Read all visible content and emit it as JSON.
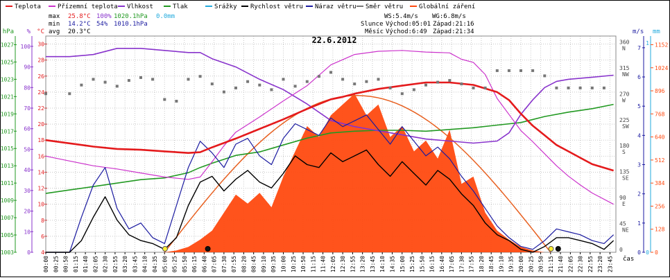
{
  "legend": [
    {
      "label": "Teplota",
      "color": "#e41a1c"
    },
    {
      "label": "Přízemní teplota",
      "color": "#cc33cc"
    },
    {
      "label": "Vlhkost",
      "color": "#8833cc"
    },
    {
      "label": "Tlak",
      "color": "#229922"
    },
    {
      "label": "Srážky",
      "color": "#22aadd"
    },
    {
      "label": "Rychlost větru",
      "color": "#000000"
    },
    {
      "label": "Náraz větru",
      "color": "#1a1aa0"
    },
    {
      "label": "Směr větru",
      "color": "#777777"
    },
    {
      "label": "Globální záření",
      "color": "#ff4a10"
    }
  ],
  "stats": {
    "max_label": "max",
    "max_temp": "25.8°C",
    "max_hum": "100%",
    "max_press": "1020.1hPa",
    "max_rain": "0.0mm",
    "min_label": "min",
    "min_temp": "14.2°C",
    "min_hum": "54%",
    "min_press": "1010.1hPa",
    "avg_label": "avg",
    "avg_temp": "20.3°C"
  },
  "wind_stats": {
    "ws": "WS:5.4m/s",
    "wg": "WG:6.8m/s",
    "sun_label": "Slunce",
    "sun_rise": "Východ:05:01",
    "sun_set": "Západ:21:16",
    "moon_label": "Měsíc",
    "moon_rise": "Východ:6:49",
    "moon_set": "Západ:21:34"
  },
  "chart_data": {
    "type": "line",
    "title": "22.6.2012",
    "xlabel": "čas",
    "axes": {
      "pressure": {
        "unit": "hPa",
        "ticks": [
          "1027",
          "1025",
          "1023",
          "1021",
          "1019",
          "1017",
          "1015",
          "1013",
          "1011",
          "1009",
          "1007",
          "1005",
          "1003"
        ],
        "range": [
          1003,
          1028
        ]
      },
      "humidity": {
        "unit": "%",
        "ticks": [
          "100",
          "90",
          "80",
          "70",
          "60",
          "50",
          "40",
          "30",
          "20",
          "10",
          "0"
        ],
        "range": [
          0,
          105
        ]
      },
      "temperature": {
        "unit": "°C",
        "ticks": [
          "30",
          "28",
          "26",
          "24",
          "22",
          "20",
          "18",
          "16",
          "14",
          "12",
          "10",
          "8",
          "6",
          "4"
        ],
        "range": [
          4,
          31
        ]
      },
      "wind_direction": {
        "ticks": [
          "360 N",
          "315 NW",
          "270 W",
          "225 SW",
          "180 S",
          "135 SE",
          "90 E",
          "45 NE",
          "0"
        ],
        "range": [
          0,
          375
        ]
      },
      "wind_speed": {
        "unit": "m/s",
        "ticks": [
          "7",
          "6",
          "5",
          "4",
          "3",
          "2",
          "1",
          "0"
        ],
        "range": [
          0,
          7.4
        ]
      },
      "rain": {
        "unit": "mm",
        "ticks": [
          "1",
          "0"
        ]
      },
      "radiation": {
        "ticks": [
          "1152",
          "1024",
          "896",
          "768",
          "640",
          "512",
          "384",
          "256",
          "128",
          "0"
        ],
        "range": [
          0,
          1200
        ]
      }
    },
    "time_ticks": [
      "00:00",
      "00:25",
      "00:50",
      "01:15",
      "01:40",
      "02:05",
      "02:30",
      "02:55",
      "03:20",
      "03:45",
      "04:10",
      "04:35",
      "05:00",
      "05:25",
      "05:50",
      "06:15",
      "06:40",
      "07:05",
      "07:30",
      "07:55",
      "08:20",
      "08:45",
      "09:10",
      "09:35",
      "10:00",
      "10:25",
      "10:50",
      "11:15",
      "11:40",
      "12:05",
      "12:30",
      "12:55",
      "13:20",
      "13:45",
      "14:10",
      "14:35",
      "15:00",
      "15:25",
      "15:50",
      "16:15",
      "16:40",
      "17:05",
      "17:30",
      "17:55",
      "18:20",
      "18:45",
      "19:10",
      "19:35",
      "20:00",
      "20:25",
      "20:50",
      "21:15",
      "21:40",
      "22:05",
      "22:30",
      "22:55",
      "23:20",
      "23:45"
    ],
    "series": [
      {
        "name": "Teplota",
        "axis": "temperature",
        "color": "#e41a1c",
        "x": [
          0,
          1,
          2,
          3,
          4,
          5,
          6,
          6.5,
          7,
          8,
          9,
          10,
          11,
          12,
          12.5,
          13,
          14,
          15,
          16,
          17,
          18,
          19,
          19.5,
          20,
          20.5,
          21,
          21.5,
          22,
          22.5,
          23,
          23.9
        ],
        "y": [
          18.0,
          17.6,
          17.2,
          16.9,
          16.8,
          16.6,
          16.4,
          16.5,
          17.1,
          18.2,
          19.4,
          20.6,
          21.9,
          23.1,
          23.4,
          23.8,
          24.4,
          24.8,
          25.2,
          25.2,
          24.9,
          24.0,
          23.0,
          21.3,
          19.8,
          18.6,
          17.4,
          16.6,
          15.8,
          15.0,
          14.2
        ]
      },
      {
        "name": "Přízemní teplota",
        "axis": "temperature",
        "color": "#cc33cc",
        "x": [
          0,
          1,
          2,
          3,
          4,
          5,
          6,
          6.5,
          7,
          7.5,
          8,
          9,
          10,
          11,
          12,
          13,
          14,
          15,
          16,
          17,
          17.5,
          18,
          18.5,
          19,
          19.5,
          20,
          20.5,
          21,
          21.5,
          22,
          22.5,
          23,
          23.9
        ],
        "y": [
          16.0,
          15.4,
          14.8,
          14.4,
          13.9,
          13.4,
          13.1,
          13.4,
          15.3,
          17.3,
          19.0,
          20.9,
          22.9,
          24.8,
          27.4,
          28.7,
          29.1,
          29.2,
          29.0,
          28.9,
          28.1,
          27.7,
          26.2,
          23.2,
          21.2,
          19.2,
          17.8,
          16.3,
          14.8,
          13.5,
          12.4,
          11.4,
          10.0
        ]
      },
      {
        "name": "Vlhkost",
        "axis": "humidity",
        "color": "#8833cc",
        "x": [
          0,
          1,
          2,
          3,
          4,
          5,
          6,
          6.5,
          7,
          8,
          9,
          10,
          11,
          12,
          13,
          14,
          15,
          16,
          17,
          18,
          19,
          19.5,
          20,
          20.5,
          21,
          21.5,
          22,
          23,
          23.9
        ],
        "y": [
          95,
          95,
          96,
          99,
          99,
          98,
          97,
          97,
          94,
          90,
          84,
          79,
          72,
          64,
          61,
          59,
          57,
          55,
          54,
          53,
          54,
          58,
          67,
          74,
          80,
          83,
          84,
          85,
          86
        ]
      },
      {
        "name": "Tlak",
        "axis": "pressure",
        "color": "#229922",
        "x": [
          0,
          1,
          2,
          3,
          4,
          5,
          6,
          6.5,
          7,
          8,
          9,
          10,
          11,
          12,
          13,
          14,
          15,
          16,
          17,
          18,
          19,
          20,
          21,
          22,
          23,
          23.9
        ],
        "y": [
          1009.8,
          1010.2,
          1010.6,
          1011.0,
          1011.4,
          1011.6,
          1012.2,
          1012.8,
          1013.3,
          1014.2,
          1014.6,
          1015.4,
          1016.2,
          1016.8,
          1017.0,
          1017.1,
          1017.1,
          1017.0,
          1017.2,
          1017.4,
          1017.7,
          1018.0,
          1018.7,
          1019.2,
          1019.6,
          1020.1
        ]
      },
      {
        "name": "Rychlost větru",
        "axis": "wind_speed",
        "color": "#000000",
        "x": [
          0,
          1,
          1.5,
          2,
          2.5,
          3,
          3.5,
          4,
          4.5,
          5,
          5.5,
          6,
          6.5,
          7,
          7.5,
          8,
          8.5,
          9,
          9.5,
          10,
          10.5,
          11,
          11.5,
          12,
          12.5,
          13,
          13.5,
          14,
          14.5,
          15,
          15.5,
          16,
          16.5,
          17,
          17.5,
          18,
          18.5,
          19,
          19.5,
          20,
          20.5,
          21,
          21.5,
          22,
          22.5,
          23,
          23.5,
          23.9
        ],
        "y": [
          0,
          0,
          0.4,
          1.2,
          1.9,
          1.1,
          0.6,
          0.4,
          0.3,
          0.1,
          0.5,
          1.6,
          2.4,
          2.6,
          2.1,
          2.5,
          2.8,
          2.4,
          2.2,
          2.7,
          3.3,
          3.0,
          2.9,
          3.4,
          3.1,
          3.3,
          3.5,
          3.0,
          2.6,
          3.1,
          2.7,
          2.3,
          2.8,
          2.5,
          2.0,
          1.6,
          1.0,
          0.6,
          0.4,
          0.1,
          0,
          0.2,
          0.5,
          0.5,
          0.4,
          0.3,
          0.1,
          0.4
        ]
      },
      {
        "name": "Náraz větru",
        "axis": "wind_speed",
        "color": "#1a1aa0",
        "x": [
          0,
          1,
          1.5,
          2,
          2.5,
          3,
          3.5,
          4,
          4.5,
          5,
          5.5,
          6,
          6.5,
          7,
          7.5,
          8,
          8.5,
          9,
          9.5,
          10,
          10.5,
          11,
          11.5,
          12,
          12.5,
          13,
          13.5,
          14,
          14.5,
          15,
          15.5,
          16,
          16.5,
          17,
          17.5,
          18,
          18.5,
          19,
          19.5,
          20,
          20.5,
          21,
          21.5,
          22,
          22.5,
          23,
          23.5,
          23.9
        ],
        "y": [
          0,
          0,
          1.2,
          2.3,
          2.9,
          1.5,
          0.8,
          1.0,
          0.5,
          0.3,
          1.6,
          2.9,
          3.8,
          3.4,
          2.9,
          3.7,
          3.9,
          3.3,
          3.0,
          3.9,
          4.4,
          4.2,
          4.0,
          4.6,
          4.3,
          4.5,
          4.7,
          4.2,
          3.7,
          4.3,
          3.8,
          3.3,
          3.6,
          3.2,
          2.6,
          2.1,
          1.5,
          0.9,
          0.5,
          0.2,
          0.1,
          0.4,
          0.8,
          0.7,
          0.6,
          0.4,
          0.3,
          0.6
        ]
      },
      {
        "name": "Směr větru",
        "axis": "wind_direction",
        "color": "#777777",
        "x": [
          0,
          1,
          1.5,
          2,
          2.5,
          3,
          3.5,
          4,
          4.5,
          5,
          5.5,
          6,
          6.5,
          7,
          7.5,
          8,
          8.5,
          9,
          9.5,
          10,
          10.5,
          11,
          11.5,
          12,
          12.5,
          13,
          13.5,
          14,
          14.5,
          15,
          15.5,
          16,
          16.5,
          17,
          17.5,
          18,
          18.5,
          19,
          19.5,
          20,
          20.5,
          21,
          21.5,
          22,
          22.5,
          23,
          23.5
        ],
        "y": [
          275,
          275,
          290,
          300,
          295,
          288,
          298,
          303,
          300,
          265,
          262,
          300,
          305,
          292,
          278,
          285,
          296,
          290,
          282,
          300,
          288,
          296,
          305,
          312,
          300,
          292,
          296,
          300,
          285,
          275,
          282,
          290,
          295,
          298,
          292,
          285,
          285,
          315,
          315,
          315,
          315,
          306,
          285,
          285,
          285,
          285,
          285
        ]
      },
      {
        "name": "Globální záření",
        "axis": "radiation",
        "color": "#ff4a10",
        "x": [
          0,
          5,
          5.5,
          6,
          6.5,
          7,
          7.5,
          8,
          8.5,
          9,
          9.5,
          10,
          10.5,
          11,
          11.5,
          12,
          12.5,
          13,
          13.5,
          14,
          14.5,
          15,
          15.5,
          16,
          16.5,
          17,
          17.5,
          18,
          18.5,
          19,
          19.5,
          20,
          20.5,
          21,
          24
        ],
        "y": [
          0,
          0,
          10,
          30,
          70,
          120,
          220,
          320,
          270,
          330,
          250,
          420,
          560,
          700,
          640,
          760,
          820,
          880,
          760,
          820,
          640,
          700,
          560,
          620,
          520,
          680,
          380,
          420,
          220,
          120,
          70,
          30,
          10,
          0,
          0
        ]
      }
    ],
    "theoretical_radiation": {
      "axis": "radiation",
      "color": "#e86020",
      "peak": 870,
      "start": 5.0,
      "end": 21.25,
      "peak_time": 13.1
    },
    "sun_moon_markers": [
      {
        "label": "Slunce východ",
        "time": 5.02,
        "type": "sun"
      },
      {
        "label": "Měsíc východ",
        "time": 6.82,
        "type": "moon"
      },
      {
        "label": "Slunce západ",
        "time": 21.27,
        "type": "sun"
      },
      {
        "label": "Měsíc západ",
        "time": 21.57,
        "type": "moon"
      }
    ]
  }
}
